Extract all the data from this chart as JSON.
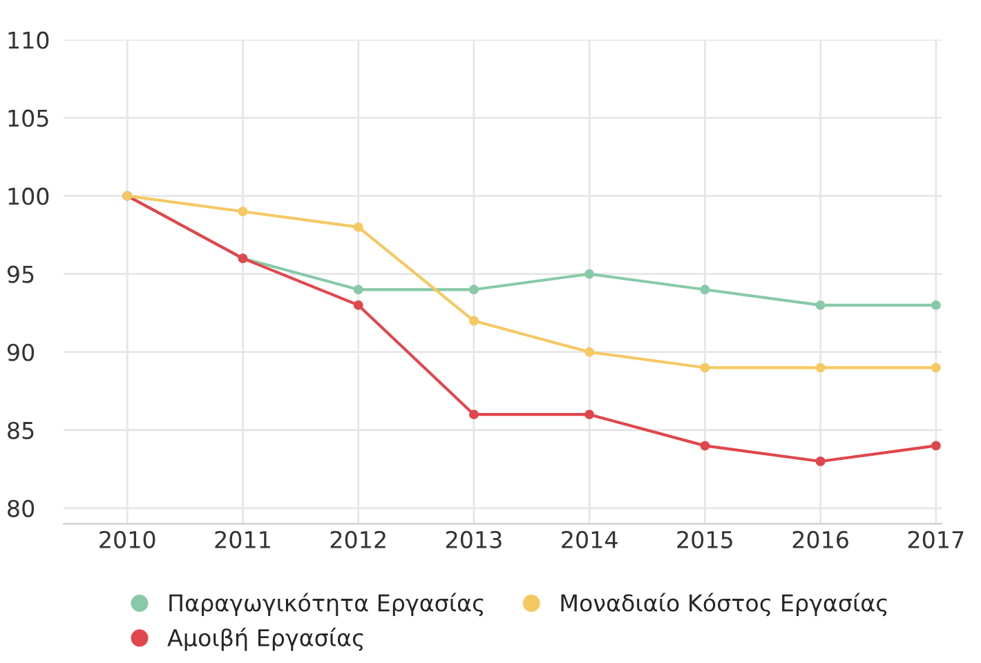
{
  "chart_data": {
    "type": "line",
    "categories": [
      "2010",
      "2011",
      "2012",
      "2013",
      "2014",
      "2015",
      "2016",
      "2017"
    ],
    "series": [
      {
        "name": "Παραγωγικότητα Εργασίας",
        "color": "#88c9a8",
        "values": [
          100,
          96,
          94,
          94,
          95,
          94,
          93,
          93
        ]
      },
      {
        "name": "Αμοιβή Εργασίας",
        "color": "#e0474c",
        "values": [
          100,
          96,
          93,
          86,
          86,
          84,
          83,
          84
        ]
      },
      {
        "name": "Μοναδιαίο Κόστος Εργασίας",
        "color": "#f5c863",
        "values": [
          100,
          99,
          98,
          92,
          90,
          89,
          89,
          89
        ]
      }
    ],
    "ylim": [
      79,
      110
    ],
    "yticks": [
      80,
      85,
      90,
      95,
      100,
      105,
      110
    ],
    "grid": true,
    "legend": "bottom",
    "marker": "circle",
    "line_style": "solid"
  }
}
